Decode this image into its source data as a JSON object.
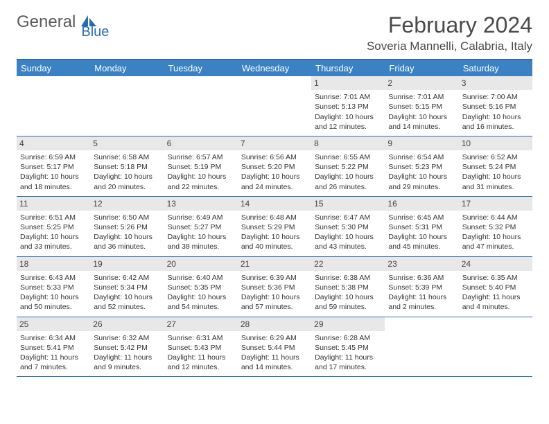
{
  "logo": {
    "text1": "General",
    "text2": "Blue"
  },
  "title": "February 2024",
  "location": "Soveria Mannelli, Calabria, Italy",
  "weekdays": [
    "Sunday",
    "Monday",
    "Tuesday",
    "Wednesday",
    "Thursday",
    "Friday",
    "Saturday"
  ],
  "colors": {
    "header_bg": "#3b82c4",
    "border": "#2a6cb0",
    "daynum_bg": "#e8e8e8",
    "text": "#333333"
  },
  "weeks": [
    [
      {
        "n": "",
        "empty": true
      },
      {
        "n": "",
        "empty": true
      },
      {
        "n": "",
        "empty": true
      },
      {
        "n": "",
        "empty": true
      },
      {
        "n": "1",
        "sunrise": "Sunrise: 7:01 AM",
        "sunset": "Sunset: 5:13 PM",
        "day1": "Daylight: 10 hours",
        "day2": "and 12 minutes."
      },
      {
        "n": "2",
        "sunrise": "Sunrise: 7:01 AM",
        "sunset": "Sunset: 5:15 PM",
        "day1": "Daylight: 10 hours",
        "day2": "and 14 minutes."
      },
      {
        "n": "3",
        "sunrise": "Sunrise: 7:00 AM",
        "sunset": "Sunset: 5:16 PM",
        "day1": "Daylight: 10 hours",
        "day2": "and 16 minutes."
      }
    ],
    [
      {
        "n": "4",
        "sunrise": "Sunrise: 6:59 AM",
        "sunset": "Sunset: 5:17 PM",
        "day1": "Daylight: 10 hours",
        "day2": "and 18 minutes."
      },
      {
        "n": "5",
        "sunrise": "Sunrise: 6:58 AM",
        "sunset": "Sunset: 5:18 PM",
        "day1": "Daylight: 10 hours",
        "day2": "and 20 minutes."
      },
      {
        "n": "6",
        "sunrise": "Sunrise: 6:57 AM",
        "sunset": "Sunset: 5:19 PM",
        "day1": "Daylight: 10 hours",
        "day2": "and 22 minutes."
      },
      {
        "n": "7",
        "sunrise": "Sunrise: 6:56 AM",
        "sunset": "Sunset: 5:20 PM",
        "day1": "Daylight: 10 hours",
        "day2": "and 24 minutes."
      },
      {
        "n": "8",
        "sunrise": "Sunrise: 6:55 AM",
        "sunset": "Sunset: 5:22 PM",
        "day1": "Daylight: 10 hours",
        "day2": "and 26 minutes."
      },
      {
        "n": "9",
        "sunrise": "Sunrise: 6:54 AM",
        "sunset": "Sunset: 5:23 PM",
        "day1": "Daylight: 10 hours",
        "day2": "and 29 minutes."
      },
      {
        "n": "10",
        "sunrise": "Sunrise: 6:52 AM",
        "sunset": "Sunset: 5:24 PM",
        "day1": "Daylight: 10 hours",
        "day2": "and 31 minutes."
      }
    ],
    [
      {
        "n": "11",
        "sunrise": "Sunrise: 6:51 AM",
        "sunset": "Sunset: 5:25 PM",
        "day1": "Daylight: 10 hours",
        "day2": "and 33 minutes."
      },
      {
        "n": "12",
        "sunrise": "Sunrise: 6:50 AM",
        "sunset": "Sunset: 5:26 PM",
        "day1": "Daylight: 10 hours",
        "day2": "and 36 minutes."
      },
      {
        "n": "13",
        "sunrise": "Sunrise: 6:49 AM",
        "sunset": "Sunset: 5:27 PM",
        "day1": "Daylight: 10 hours",
        "day2": "and 38 minutes."
      },
      {
        "n": "14",
        "sunrise": "Sunrise: 6:48 AM",
        "sunset": "Sunset: 5:29 PM",
        "day1": "Daylight: 10 hours",
        "day2": "and 40 minutes."
      },
      {
        "n": "15",
        "sunrise": "Sunrise: 6:47 AM",
        "sunset": "Sunset: 5:30 PM",
        "day1": "Daylight: 10 hours",
        "day2": "and 43 minutes."
      },
      {
        "n": "16",
        "sunrise": "Sunrise: 6:45 AM",
        "sunset": "Sunset: 5:31 PM",
        "day1": "Daylight: 10 hours",
        "day2": "and 45 minutes."
      },
      {
        "n": "17",
        "sunrise": "Sunrise: 6:44 AM",
        "sunset": "Sunset: 5:32 PM",
        "day1": "Daylight: 10 hours",
        "day2": "and 47 minutes."
      }
    ],
    [
      {
        "n": "18",
        "sunrise": "Sunrise: 6:43 AM",
        "sunset": "Sunset: 5:33 PM",
        "day1": "Daylight: 10 hours",
        "day2": "and 50 minutes."
      },
      {
        "n": "19",
        "sunrise": "Sunrise: 6:42 AM",
        "sunset": "Sunset: 5:34 PM",
        "day1": "Daylight: 10 hours",
        "day2": "and 52 minutes."
      },
      {
        "n": "20",
        "sunrise": "Sunrise: 6:40 AM",
        "sunset": "Sunset: 5:35 PM",
        "day1": "Daylight: 10 hours",
        "day2": "and 54 minutes."
      },
      {
        "n": "21",
        "sunrise": "Sunrise: 6:39 AM",
        "sunset": "Sunset: 5:36 PM",
        "day1": "Daylight: 10 hours",
        "day2": "and 57 minutes."
      },
      {
        "n": "22",
        "sunrise": "Sunrise: 6:38 AM",
        "sunset": "Sunset: 5:38 PM",
        "day1": "Daylight: 10 hours",
        "day2": "and 59 minutes."
      },
      {
        "n": "23",
        "sunrise": "Sunrise: 6:36 AM",
        "sunset": "Sunset: 5:39 PM",
        "day1": "Daylight: 11 hours",
        "day2": "and 2 minutes."
      },
      {
        "n": "24",
        "sunrise": "Sunrise: 6:35 AM",
        "sunset": "Sunset: 5:40 PM",
        "day1": "Daylight: 11 hours",
        "day2": "and 4 minutes."
      }
    ],
    [
      {
        "n": "25",
        "sunrise": "Sunrise: 6:34 AM",
        "sunset": "Sunset: 5:41 PM",
        "day1": "Daylight: 11 hours",
        "day2": "and 7 minutes."
      },
      {
        "n": "26",
        "sunrise": "Sunrise: 6:32 AM",
        "sunset": "Sunset: 5:42 PM",
        "day1": "Daylight: 11 hours",
        "day2": "and 9 minutes."
      },
      {
        "n": "27",
        "sunrise": "Sunrise: 6:31 AM",
        "sunset": "Sunset: 5:43 PM",
        "day1": "Daylight: 11 hours",
        "day2": "and 12 minutes."
      },
      {
        "n": "28",
        "sunrise": "Sunrise: 6:29 AM",
        "sunset": "Sunset: 5:44 PM",
        "day1": "Daylight: 11 hours",
        "day2": "and 14 minutes."
      },
      {
        "n": "29",
        "sunrise": "Sunrise: 6:28 AM",
        "sunset": "Sunset: 5:45 PM",
        "day1": "Daylight: 11 hours",
        "day2": "and 17 minutes."
      },
      {
        "n": "",
        "empty": true
      },
      {
        "n": "",
        "empty": true
      }
    ]
  ]
}
